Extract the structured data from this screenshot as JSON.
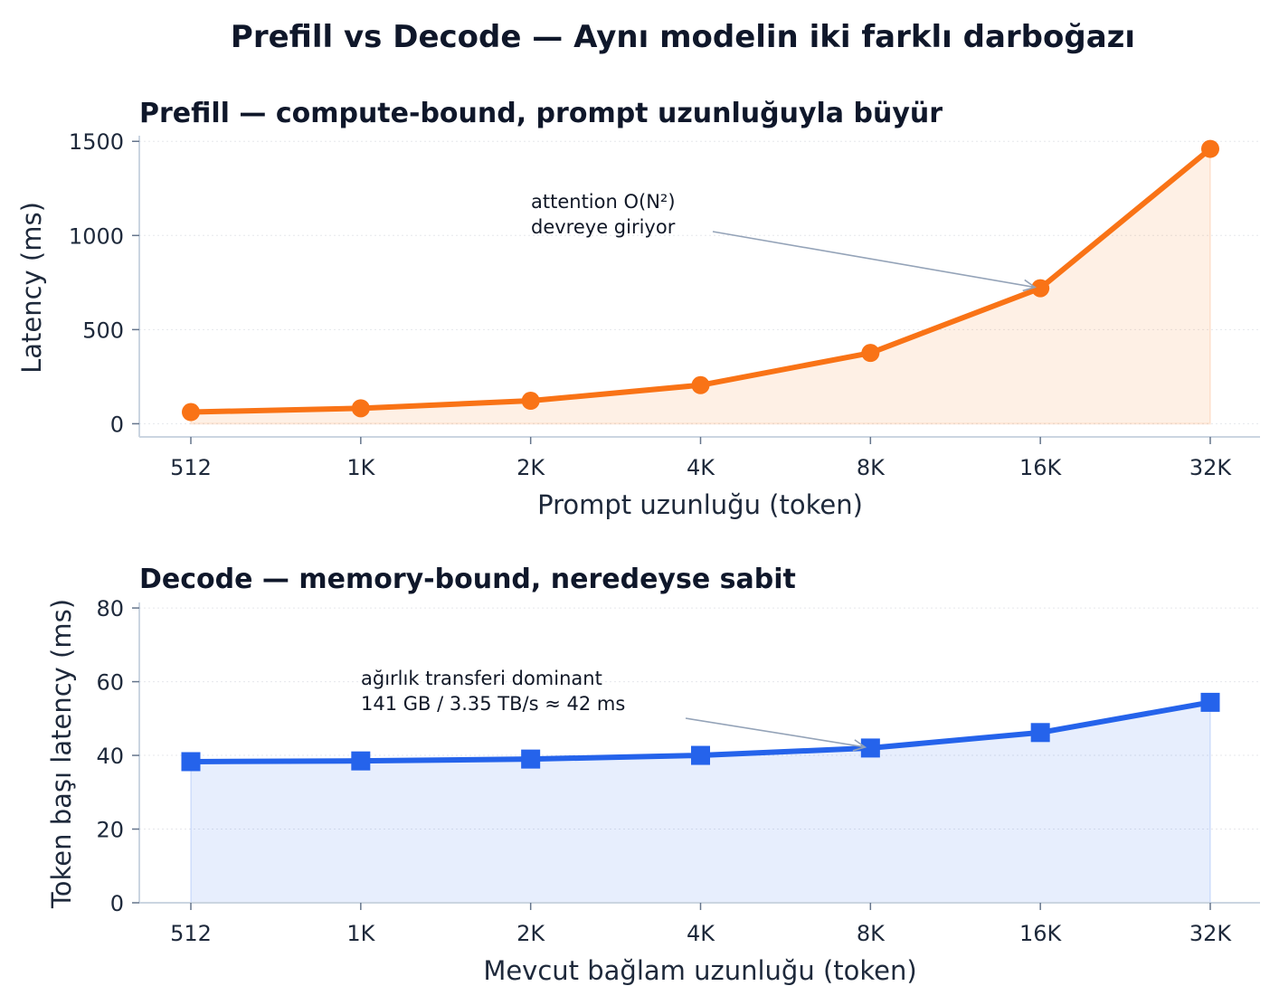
{
  "figure": {
    "title": "Prefill vs Decode — Aynı modelin iki farklı darboğazı"
  },
  "chart_data": [
    {
      "type": "area",
      "title": "Prefill — compute-bound, prompt uzunluğuyla büyür",
      "xlabel": "Prompt uzunluğu (token)",
      "ylabel": "Latency (ms)",
      "categories": [
        "512",
        "1K",
        "2K",
        "4K",
        "8K",
        "16K",
        "32K"
      ],
      "series": [
        {
          "values": [
            62,
            82,
            122,
            205,
            376,
            720,
            1460
          ],
          "color": "#f97316",
          "marker": "circle"
        }
      ],
      "ylim": [
        -70,
        1530
      ],
      "yticks": [
        0,
        500,
        1000,
        1500
      ],
      "grid": true,
      "annotation": {
        "lines": [
          "attention O(N²)",
          "devreye giriyor"
        ],
        "target_category": "16K",
        "target_value": 720
      }
    },
    {
      "type": "area",
      "title": "Decode — memory-bound, neredeyse sabit",
      "xlabel": "Mevcut bağlam uzunluğu (token)",
      "ylabel": "Token başı latency (ms)",
      "categories": [
        "512",
        "1K",
        "2K",
        "4K",
        "8K",
        "16K",
        "32K"
      ],
      "series": [
        {
          "values": [
            38.3,
            38.5,
            39.0,
            40.0,
            42.0,
            46.2,
            54.4
          ],
          "color": "#2563eb",
          "marker": "square"
        }
      ],
      "ylim": [
        0,
        81.5
      ],
      "yticks": [
        0,
        20,
        40,
        60,
        80
      ],
      "grid": true,
      "annotation": {
        "lines": [
          "ağırlık transferi dominant",
          "141 GB / 3.35 TB/s ≈ 42 ms"
        ],
        "target_category": "8K",
        "target_value": 42
      }
    }
  ]
}
